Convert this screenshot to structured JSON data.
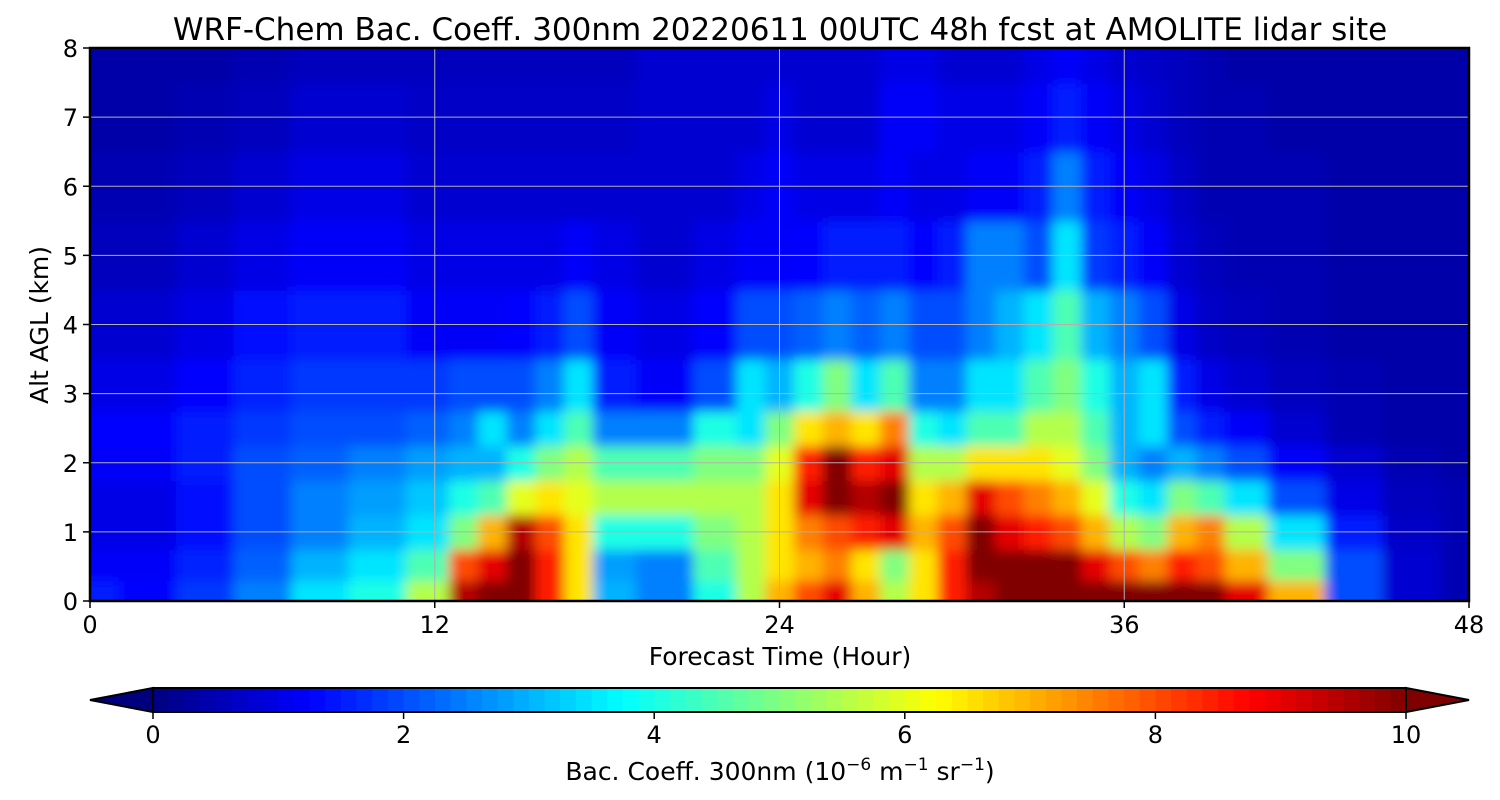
{
  "chart_data": {
    "type": "heatmap",
    "title": "WRF-Chem Bac. Coeff. 300nm  20220611 00UTC 48h fcst at AMOLITE lidar site",
    "xlabel": "Forecast Time (Hour)",
    "ylabel": "Alt AGL (km)",
    "xlim": [
      0,
      48
    ],
    "ylim": [
      0,
      8
    ],
    "x_ticks": [
      "0",
      "12",
      "24",
      "36",
      "48"
    ],
    "y_ticks": [
      "0",
      "1",
      "2",
      "3",
      "4",
      "5",
      "6",
      "7",
      "8"
    ],
    "grid": true,
    "colormap": "jet",
    "colorbar": {
      "label_main": "Bac. Coeff. 300nm  (10",
      "label_exp1": "−6",
      "label_mid": " m",
      "label_exp2": "−1",
      "label_mid2": " sr",
      "label_exp3": "−1",
      "label_end": ")",
      "range": [
        0,
        10
      ],
      "ticks": [
        "0",
        "2",
        "4",
        "6",
        "8",
        "10"
      ],
      "extend": "both",
      "orientation": "horizontal"
    },
    "altitudes_km": [
      0.1,
      0.5,
      1.0,
      1.5,
      2.0,
      2.5,
      3.0,
      4.0,
      5.0,
      6.0,
      7.0,
      8.0
    ],
    "hours": [
      0,
      2,
      4,
      6,
      8,
      10,
      12,
      13,
      14,
      15,
      16,
      17,
      18,
      20,
      22,
      23,
      24,
      25,
      26,
      27,
      28,
      29,
      30,
      31,
      32,
      33,
      34,
      35,
      36,
      37,
      38,
      39,
      40,
      42,
      44,
      46,
      48
    ],
    "values": [
      [
        1.5,
        1.3,
        1.8,
        2.5,
        3.5,
        4.0,
        5.5,
        9.5,
        10.5,
        10.0,
        8.5,
        6.5,
        3.0,
        2.5,
        4.0,
        5.5,
        7.0,
        8.0,
        9.0,
        7.0,
        5.5,
        6.5,
        8.5,
        9.5,
        10.5,
        11.0,
        11.0,
        11.0,
        10.5,
        10.0,
        10.5,
        10.0,
        9.0,
        7.0,
        2.0,
        0.8,
        0.5
      ],
      [
        1.2,
        1.2,
        1.6,
        2.2,
        3.0,
        3.5,
        4.5,
        8.0,
        9.0,
        10.0,
        8.5,
        6.5,
        2.8,
        2.5,
        4.5,
        5.5,
        6.5,
        7.0,
        7.5,
        6.5,
        5.0,
        6.5,
        8.5,
        10.0,
        10.5,
        11.0,
        10.5,
        9.0,
        8.0,
        7.5,
        8.5,
        8.0,
        7.0,
        5.0,
        2.0,
        0.8,
        0.5
      ],
      [
        1.0,
        1.0,
        1.4,
        2.0,
        2.5,
        3.0,
        3.5,
        5.0,
        7.0,
        9.5,
        8.0,
        6.5,
        4.0,
        4.0,
        5.0,
        5.5,
        6.5,
        7.5,
        8.0,
        8.5,
        9.0,
        7.0,
        8.0,
        10.0,
        9.0,
        8.5,
        8.0,
        7.0,
        5.5,
        5.0,
        7.0,
        7.5,
        5.5,
        3.5,
        1.5,
        0.7,
        0.5
      ],
      [
        1.0,
        1.0,
        1.4,
        2.0,
        2.5,
        2.8,
        3.2,
        4.0,
        4.5,
        6.0,
        6.5,
        6.0,
        5.5,
        5.5,
        5.5,
        5.5,
        6.5,
        9.0,
        10.5,
        9.5,
        11.0,
        6.5,
        7.0,
        9.0,
        8.0,
        7.5,
        7.0,
        6.0,
        4.0,
        3.5,
        5.0,
        4.5,
        3.5,
        2.0,
        1.0,
        0.6,
        0.5
      ],
      [
        1.2,
        1.2,
        1.5,
        2.0,
        2.2,
        2.5,
        2.8,
        3.0,
        3.0,
        4.0,
        5.0,
        5.5,
        4.5,
        4.5,
        5.0,
        5.0,
        6.0,
        8.5,
        10.0,
        8.5,
        9.0,
        5.5,
        5.5,
        6.5,
        6.5,
        6.5,
        6.0,
        5.0,
        3.0,
        2.5,
        3.0,
        2.5,
        2.0,
        1.2,
        0.8,
        0.5,
        0.4
      ],
      [
        1.3,
        1.3,
        1.5,
        1.8,
        2.0,
        2.0,
        2.2,
        2.5,
        3.5,
        2.5,
        3.5,
        4.5,
        2.5,
        2.5,
        4.0,
        3.5,
        5.0,
        6.5,
        7.0,
        6.5,
        7.5,
        4.0,
        3.5,
        4.5,
        4.5,
        5.5,
        5.5,
        4.5,
        3.0,
        3.5,
        2.0,
        1.5,
        1.2,
        0.8,
        0.5,
        0.4,
        0.4
      ],
      [
        1.0,
        1.0,
        1.3,
        1.6,
        1.8,
        1.8,
        1.8,
        2.0,
        2.0,
        2.0,
        2.5,
        3.5,
        1.5,
        1.2,
        2.0,
        3.5,
        3.0,
        4.0,
        5.0,
        3.5,
        4.5,
        2.5,
        2.5,
        3.5,
        3.5,
        4.5,
        5.0,
        4.0,
        3.0,
        3.5,
        1.5,
        1.0,
        0.8,
        0.6,
        0.5,
        0.4,
        0.4
      ],
      [
        0.8,
        0.8,
        1.0,
        1.4,
        1.5,
        1.5,
        1.2,
        1.2,
        1.2,
        1.3,
        1.5,
        2.0,
        1.2,
        1.0,
        1.3,
        2.0,
        2.0,
        2.2,
        2.5,
        2.2,
        2.5,
        2.0,
        2.0,
        2.5,
        3.0,
        3.5,
        4.5,
        3.0,
        2.5,
        2.0,
        1.0,
        0.7,
        0.6,
        0.5,
        0.4,
        0.4,
        0.4
      ],
      [
        0.6,
        0.6,
        0.8,
        1.0,
        1.2,
        1.2,
        1.0,
        1.0,
        1.0,
        1.0,
        1.0,
        1.2,
        1.0,
        0.8,
        1.0,
        1.2,
        1.2,
        1.3,
        1.5,
        1.5,
        1.5,
        1.3,
        1.5,
        2.5,
        2.5,
        2.0,
        3.5,
        1.8,
        1.5,
        1.2,
        0.8,
        0.6,
        0.5,
        0.5,
        0.4,
        0.4,
        0.4
      ],
      [
        0.5,
        0.5,
        0.6,
        0.8,
        1.0,
        1.0,
        0.8,
        0.8,
        0.8,
        0.8,
        0.8,
        0.8,
        0.8,
        0.8,
        0.8,
        1.0,
        1.2,
        1.0,
        1.0,
        1.0,
        1.2,
        1.0,
        1.0,
        1.2,
        1.2,
        1.5,
        2.5,
        1.5,
        1.2,
        1.0,
        0.7,
        0.5,
        0.5,
        0.5,
        0.4,
        0.4,
        0.4
      ],
      [
        0.4,
        0.4,
        0.5,
        0.6,
        0.8,
        0.8,
        0.7,
        0.7,
        0.7,
        0.7,
        0.7,
        0.7,
        0.7,
        0.8,
        0.8,
        0.8,
        1.0,
        0.8,
        0.8,
        0.8,
        1.2,
        1.2,
        1.0,
        1.0,
        1.0,
        1.2,
        1.5,
        1.2,
        1.0,
        0.8,
        0.6,
        0.5,
        0.5,
        0.4,
        0.4,
        0.4,
        0.4
      ],
      [
        0.4,
        0.4,
        0.4,
        0.5,
        0.6,
        0.6,
        0.6,
        0.6,
        0.6,
        0.6,
        0.6,
        0.6,
        0.6,
        0.8,
        0.8,
        0.8,
        0.8,
        0.8,
        0.8,
        0.8,
        1.0,
        1.0,
        0.8,
        0.8,
        0.8,
        1.0,
        1.2,
        1.0,
        0.8,
        0.7,
        0.6,
        0.5,
        0.4,
        0.4,
        0.4,
        0.4,
        0.4
      ]
    ]
  }
}
